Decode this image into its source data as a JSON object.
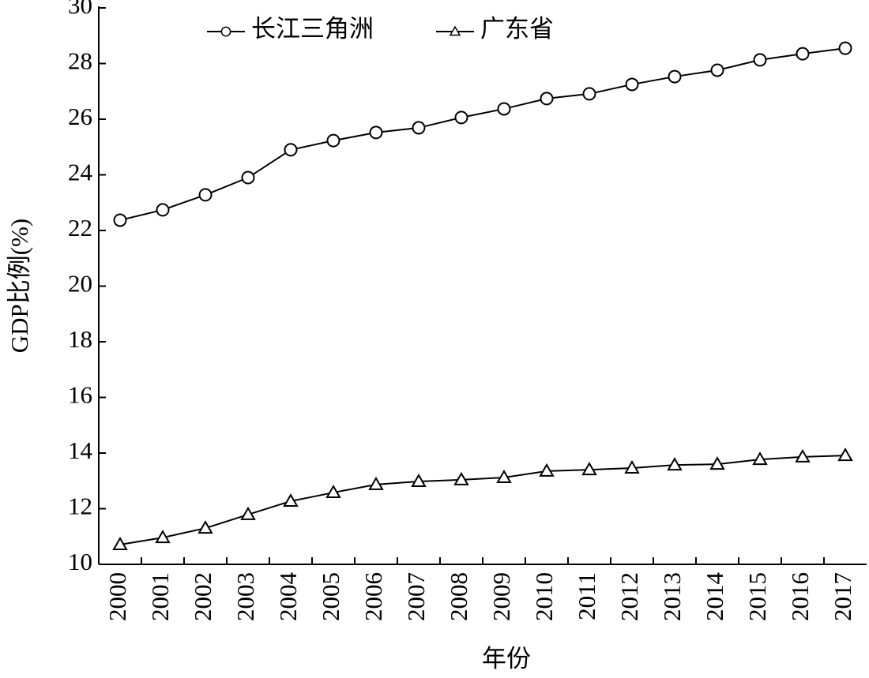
{
  "chart_data": {
    "type": "line",
    "x_label": "年份",
    "y_label": "GDP比例(%)",
    "categories": [
      "2000",
      "2001",
      "2002",
      "2003",
      "2004",
      "2005",
      "2006",
      "2007",
      "2008",
      "2009",
      "2010",
      "2011",
      "2012",
      "2013",
      "2014",
      "2015",
      "2016",
      "2017"
    ],
    "series": [
      {
        "name": "长江三角洲",
        "color": "#000000",
        "marker": "circle",
        "values": [
          22.37,
          22.74,
          23.28,
          23.9,
          24.9,
          25.23,
          25.52,
          25.69,
          26.06,
          26.37,
          26.74,
          26.91,
          27.25,
          27.53,
          27.76,
          28.13,
          28.35,
          28.55
        ]
      },
      {
        "name": "广东省",
        "color": "#000000",
        "marker": "triangle",
        "values": [
          10.71,
          10.96,
          11.3,
          11.79,
          12.27,
          12.58,
          12.87,
          12.98,
          13.04,
          13.12,
          13.35,
          13.4,
          13.46,
          13.57,
          13.6,
          13.77,
          13.86,
          13.91
        ]
      }
    ],
    "ylim": [
      10,
      30
    ],
    "yticks": [
      10,
      12,
      14,
      16,
      18,
      20,
      22,
      24,
      26,
      28,
      30
    ]
  }
}
